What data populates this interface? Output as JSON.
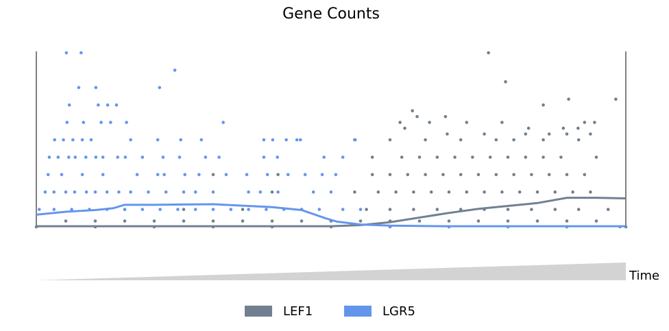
{
  "chart_data": {
    "type": "scatter",
    "title": "Gene Counts",
    "x_label": "Time",
    "xlim": [
      0,
      1
    ],
    "ylim": [
      0,
      30
    ],
    "legend": "bottom",
    "series": [
      {
        "name": "LEF1",
        "color": "#708090",
        "x": [
          0.767,
          0.796,
          0.903,
          0.983,
          0.86,
          0.638,
          0.646,
          0.694,
          0.617,
          0.667,
          0.73,
          0.79,
          0.93,
          0.947,
          0.625,
          0.835,
          0.894,
          0.919,
          0.697,
          0.76,
          0.83,
          0.87,
          0.9,
          0.94,
          0.54,
          0.6,
          0.66,
          0.72,
          0.78,
          0.81,
          0.86,
          0.92,
          0.57,
          0.62,
          0.65,
          0.68,
          0.71,
          0.74,
          0.77,
          0.8,
          0.83,
          0.86,
          0.89,
          0.95,
          0.3,
          0.41,
          0.57,
          0.6,
          0.63,
          0.66,
          0.69,
          0.72,
          0.75,
          0.78,
          0.81,
          0.84,
          0.87,
          0.9,
          0.93,
          0.4,
          0.54,
          0.58,
          0.61,
          0.64,
          0.67,
          0.7,
          0.73,
          0.76,
          0.79,
          0.82,
          0.85,
          0.88,
          0.91,
          0.94,
          0.15,
          0.25,
          0.35,
          0.45,
          0.56,
          0.6,
          0.64,
          0.68,
          0.72,
          0.76,
          0.8,
          0.84,
          0.88,
          0.92,
          0.97,
          0.05,
          0.1,
          0.15,
          0.2,
          0.25,
          0.3,
          0.35,
          0.4,
          0.45,
          0.5,
          0.55,
          0.6,
          0.65,
          0.7,
          0.75,
          0.8,
          0.85,
          0.9,
          0.95,
          0,
          0.1,
          0.2,
          0.3,
          0.4,
          0.5,
          0.6,
          0.7,
          0.8,
          0.9,
          1
        ],
        "values": [
          30,
          25,
          22,
          22,
          21,
          20,
          19,
          19,
          18,
          18,
          18,
          18,
          18,
          18,
          17,
          17,
          17,
          17,
          16,
          16,
          16,
          16,
          16,
          16,
          15,
          15,
          15,
          15,
          15,
          15,
          15,
          15,
          12,
          12,
          12,
          12,
          12,
          12,
          12,
          12,
          12,
          12,
          12,
          12,
          9,
          9,
          9,
          9,
          9,
          9,
          9,
          9,
          9,
          9,
          9,
          9,
          9,
          9,
          9,
          6,
          6,
          6,
          6,
          6,
          6,
          6,
          6,
          6,
          6,
          6,
          6,
          6,
          6,
          6,
          3,
          3,
          3,
          3,
          3,
          3,
          3,
          3,
          3,
          3,
          3,
          3,
          3,
          3,
          3,
          1,
          1,
          1,
          1,
          1,
          1,
          1,
          1,
          1,
          1,
          1,
          1,
          1,
          1,
          1,
          1,
          1,
          1,
          1,
          0,
          0,
          0,
          0,
          0,
          0,
          0,
          0,
          0,
          0,
          0
        ],
        "smooth": {
          "x": [
            0,
            0.2,
            0.4,
            0.5,
            0.55,
            0.6,
            0.65,
            0.7,
            0.75,
            0.8,
            0.85,
            0.9,
            0.95,
            1
          ],
          "values": [
            0.1,
            0.1,
            0.1,
            0.1,
            0.3,
            0.8,
            1.6,
            2.4,
            3.1,
            3.6,
            4.1,
            5.0,
            5.0,
            4.9
          ]
        }
      },
      {
        "name": "LGR5",
        "color": "#6495ed",
        "x": [
          0.051,
          0.076,
          0.235,
          0.072,
          0.101,
          0.209,
          0.056,
          0.105,
          0.121,
          0.136,
          0.052,
          0.08,
          0.11,
          0.126,
          0.153,
          0.317,
          0.031,
          0.046,
          0.062,
          0.078,
          0.093,
          0.16,
          0.206,
          0.245,
          0.28,
          0.386,
          0.401,
          0.424,
          0.442,
          0.448,
          0.541,
          0.022,
          0.037,
          0.055,
          0.066,
          0.084,
          0.101,
          0.113,
          0.138,
          0.151,
          0.18,
          0.215,
          0.243,
          0.287,
          0.31,
          0.386,
          0.409,
          0.488,
          0.52,
          0.02,
          0.043,
          0.078,
          0.113,
          0.171,
          0.206,
          0.217,
          0.252,
          0.276,
          0.322,
          0.357,
          0.392,
          0.427,
          0.456,
          0.485,
          0.508,
          0.015,
          0.03,
          0.05,
          0.065,
          0.085,
          0.1,
          0.12,
          0.14,
          0.16,
          0.19,
          0.22,
          0.25,
          0.27,
          0.3,
          0.36,
          0.38,
          0.41,
          0.47,
          0.5,
          0.005,
          0.03,
          0.06,
          0.09,
          0.12,
          0.15,
          0.18,
          0.21,
          0.24,
          0.27,
          0.3,
          0.33,
          0.36,
          0.39,
          0.42,
          0.45,
          0.48,
          0.52,
          0.55,
          0.6,
          0.7,
          0.8,
          0.9,
          0.99
        ],
        "values": [
          30,
          30,
          27,
          24,
          24,
          24,
          21,
          21,
          21,
          21,
          18,
          18,
          18,
          18,
          18,
          18,
          15,
          15,
          15,
          15,
          15,
          15,
          15,
          15,
          15,
          15,
          15,
          15,
          15,
          15,
          15,
          12,
          12,
          12,
          12,
          12,
          12,
          12,
          12,
          12,
          12,
          12,
          12,
          12,
          12,
          12,
          12,
          12,
          12,
          9,
          9,
          9,
          9,
          9,
          9,
          9,
          9,
          9,
          9,
          9,
          9,
          9,
          9,
          9,
          9,
          6,
          6,
          6,
          6,
          6,
          6,
          6,
          6,
          6,
          6,
          6,
          6,
          6,
          6,
          6,
          6,
          6,
          6,
          6,
          3,
          3,
          3,
          3,
          3,
          3,
          3,
          3,
          3,
          3,
          3,
          3,
          3,
          3,
          3,
          3,
          3,
          3,
          3,
          0,
          0,
          0,
          0,
          0
        ],
        "smooth": {
          "x": [
            0,
            0.05,
            0.1,
            0.13,
            0.15,
            0.2,
            0.3,
            0.4,
            0.45,
            0.49,
            0.51,
            0.55,
            0.6,
            0.7,
            0.8,
            0.9,
            1
          ],
          "values": [
            2.1,
            2.6,
            2.9,
            3.2,
            3.8,
            3.8,
            3.9,
            3.4,
            2.9,
            1.5,
            0.9,
            0.4,
            0.2,
            0.1,
            0.1,
            0.1,
            0.1
          ]
        }
      }
    ]
  }
}
